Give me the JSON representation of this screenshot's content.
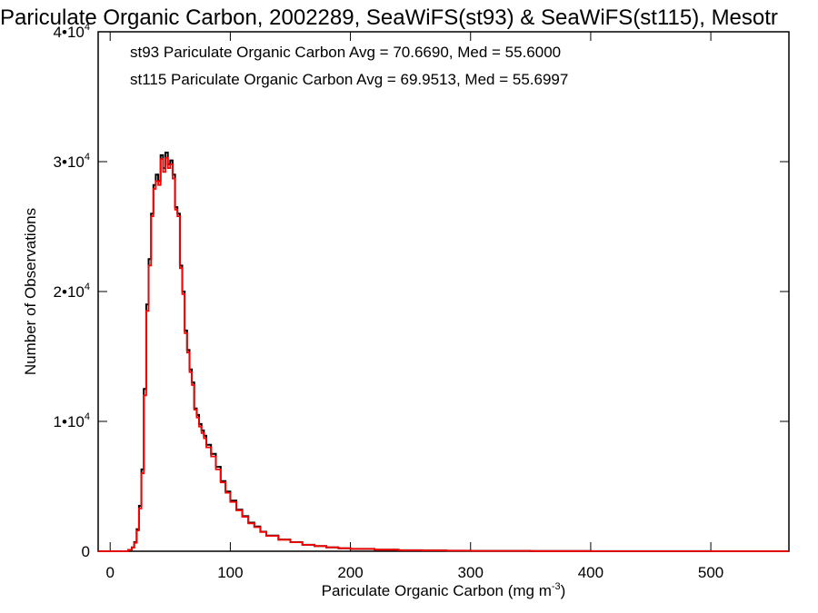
{
  "chart_data": {
    "type": "line",
    "title": "Pariculate Organic Carbon, 2002289, SeaWiFS(st93) & SeaWiFS(st115), Mesotr",
    "xlabel": "Pariculate Organic Carbon (mg m",
    "xlabel_sup": "-3",
    "xlabel_tail": ")",
    "ylabel": "Number of Observations",
    "xlim": [
      -10,
      565
    ],
    "ylim": [
      0,
      40000
    ],
    "x_ticks": [
      0,
      100,
      200,
      300,
      400,
      500
    ],
    "x_tick_labels": [
      "0",
      "100",
      "200",
      "300",
      "400",
      "500"
    ],
    "y_ticks": [
      0,
      10000,
      20000,
      30000,
      40000
    ],
    "y_tick_labels": [
      {
        "base": "0",
        "exp": ""
      },
      {
        "base": "1•10",
        "exp": "4"
      },
      {
        "base": "2•10",
        "exp": "4"
      },
      {
        "base": "3•10",
        "exp": "4"
      },
      {
        "base": "4•10",
        "exp": "4"
      }
    ],
    "grid": false,
    "legend_position": "top-left",
    "series": [
      {
        "name": "st93 Pariculate Organic Carbon Avg = 70.6690, Med = 55.6000",
        "color": "#000000",
        "x": [
          -10,
          10,
          15,
          18,
          20,
          22,
          24,
          26,
          28,
          30,
          32,
          34,
          36,
          38,
          40,
          42,
          44,
          46,
          48,
          50,
          52,
          54,
          56,
          58,
          60,
          62,
          64,
          66,
          68,
          70,
          72,
          74,
          76,
          78,
          80,
          84,
          88,
          92,
          96,
          100,
          105,
          110,
          115,
          120,
          125,
          130,
          140,
          150,
          160,
          170,
          180,
          190,
          200,
          220,
          240,
          260,
          280,
          300,
          350,
          400,
          450,
          500,
          565
        ],
        "y": [
          0,
          0,
          100,
          300,
          700,
          1700,
          3500,
          6300,
          12500,
          19000,
          22500,
          26000,
          28200,
          29000,
          28500,
          30500,
          29500,
          30700,
          29800,
          30100,
          29000,
          26500,
          26000,
          22000,
          20000,
          17000,
          15500,
          14000,
          13000,
          11000,
          10500,
          9800,
          9300,
          8900,
          8200,
          7500,
          6500,
          5400,
          4600,
          3900,
          3200,
          2700,
          2200,
          1900,
          1500,
          1200,
          900,
          700,
          500,
          400,
          300,
          230,
          180,
          120,
          80,
          60,
          40,
          30,
          15,
          8,
          4,
          2,
          0
        ]
      },
      {
        "name": "st115 Pariculate Organic Carbon Avg = 69.9513, Med = 55.6997",
        "color": "#ff0000",
        "x": [
          -10,
          10,
          15,
          18,
          20,
          22,
          24,
          26,
          28,
          30,
          32,
          34,
          36,
          38,
          40,
          42,
          44,
          46,
          48,
          50,
          52,
          54,
          56,
          58,
          60,
          62,
          64,
          66,
          68,
          70,
          72,
          74,
          76,
          78,
          80,
          84,
          88,
          92,
          96,
          100,
          105,
          110,
          115,
          120,
          125,
          130,
          140,
          150,
          160,
          170,
          180,
          190,
          200,
          220,
          240,
          260,
          280,
          300,
          350,
          400,
          450,
          500,
          565
        ],
        "y": [
          0,
          0,
          100,
          280,
          650,
          1600,
          3300,
          6000,
          12000,
          18500,
          22000,
          25800,
          27900,
          28500,
          28200,
          30200,
          29200,
          30300,
          29500,
          29800,
          28700,
          26300,
          25800,
          21800,
          19800,
          16800,
          15300,
          13800,
          12800,
          10900,
          10300,
          9600,
          9100,
          8700,
          8000,
          7300,
          6300,
          5300,
          4500,
          3800,
          3150,
          2650,
          2150,
          1850,
          1480,
          1180,
          890,
          690,
          500,
          400,
          300,
          230,
          180,
          120,
          80,
          60,
          40,
          30,
          15,
          8,
          4,
          2,
          0
        ]
      }
    ]
  }
}
